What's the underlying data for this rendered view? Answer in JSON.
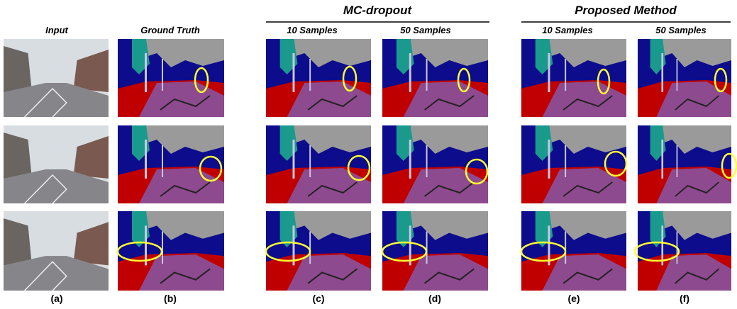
{
  "groups": [
    {
      "title": "MC-dropout"
    },
    {
      "title": "Proposed Method"
    }
  ],
  "columns": [
    {
      "header": "Input",
      "caption": "(a)"
    },
    {
      "header": "Ground Truth",
      "caption": "(b)"
    },
    {
      "header": "10 Samples",
      "caption": "(c)"
    },
    {
      "header": "50 Samples",
      "caption": "(d)"
    },
    {
      "header": "10 Samples",
      "caption": "(e)"
    },
    {
      "header": "50 Samples",
      "caption": "(f)"
    }
  ]
}
